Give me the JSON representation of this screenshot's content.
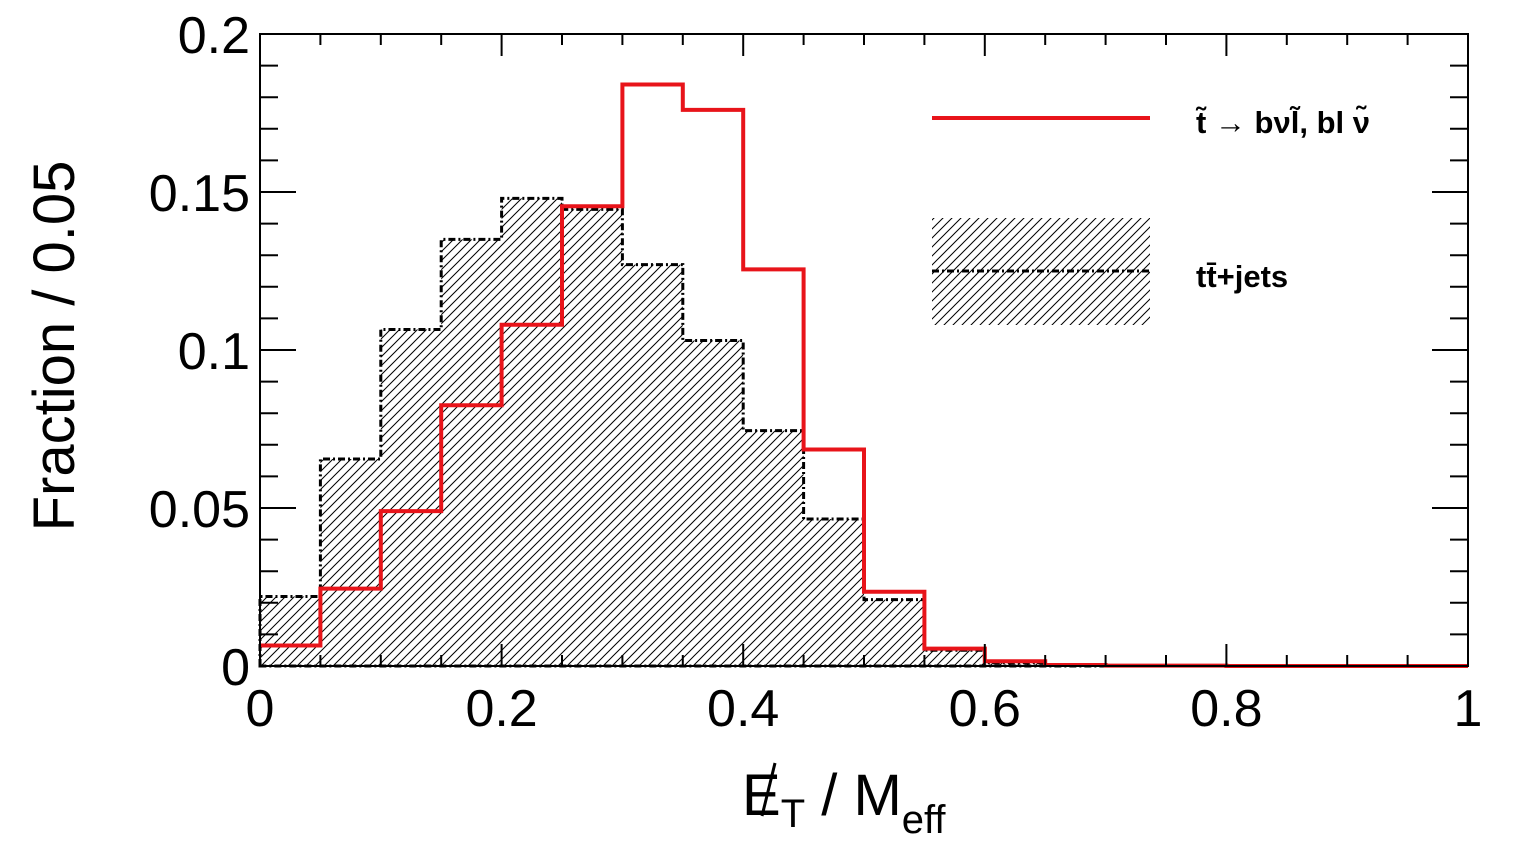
{
  "chart_data": {
    "type": "histogram",
    "x_range": [
      0,
      1
    ],
    "y_range": [
      0,
      0.2
    ],
    "bin_width": 0.05,
    "x_ticks": [
      "0",
      "0.2",
      "0.4",
      "0.6",
      "0.8",
      "1"
    ],
    "y_ticks": [
      "0",
      "0.05",
      "0.1",
      "0.15",
      "0.2"
    ],
    "x_tick_values": [
      0,
      0.2,
      0.4,
      0.6,
      0.8,
      1
    ],
    "y_tick_values": [
      0,
      0.05,
      0.1,
      0.15,
      0.2
    ],
    "xlabel_main": "E",
    "xlabel_sub": "T",
    "xlabel_sep": " / M",
    "xlabel_sub2": "eff",
    "ylabel": "Fraction / 0.05",
    "legend_position": "top-right",
    "grid": false,
    "series": [
      {
        "name": "t̃  → bνl̃, bl ν̃",
        "style": "line",
        "color": "#e8141a",
        "bin_edges": [
          0,
          0.05,
          0.1,
          0.15,
          0.2,
          0.25,
          0.3,
          0.35,
          0.4,
          0.45,
          0.5,
          0.55,
          0.6,
          0.65,
          0.7,
          0.75,
          0.8,
          0.85,
          0.9,
          0.95,
          1.0
        ],
        "values": [
          0.0065,
          0.0245,
          0.049,
          0.0825,
          0.108,
          0.1455,
          0.184,
          0.176,
          0.1255,
          0.0685,
          0.0235,
          0.0055,
          0.0015,
          0.0003,
          0.0001,
          0.0001,
          0.0,
          0.0,
          0.0,
          0.0
        ]
      },
      {
        "name": "tt̄+jets",
        "style": "hatched",
        "color": "#000000",
        "bin_edges": [
          0,
          0.05,
          0.1,
          0.15,
          0.2,
          0.25,
          0.3,
          0.35,
          0.4,
          0.45,
          0.5,
          0.55,
          0.6,
          0.65,
          0.7,
          0.75,
          0.8,
          0.85,
          0.9,
          0.95,
          1.0
        ],
        "values": [
          0.022,
          0.0655,
          0.1065,
          0.135,
          0.148,
          0.1445,
          0.127,
          0.103,
          0.0745,
          0.0465,
          0.021,
          0.005,
          0.001,
          0.0003,
          0.0001,
          0.0,
          0.0,
          0.0,
          0.0,
          0.0
        ]
      }
    ]
  }
}
